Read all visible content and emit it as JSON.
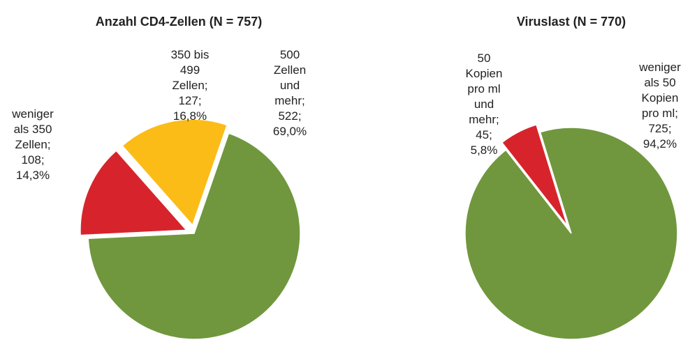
{
  "chart_data": [
    {
      "type": "pie",
      "title": "Anzahl CD4-Zellen (N = 757)",
      "categories": [
        "weniger als 350 Zellen;",
        "350 bis 499 Zellen;",
        "500 Zellen und mehr;"
      ],
      "values": [
        108,
        127,
        522
      ],
      "value_labels": [
        "108;",
        "127;",
        "522;"
      ],
      "percentages": [
        {
          "value": 14.3,
          "label": "14,3%"
        },
        {
          "value": 16.8,
          "label": "16,8%"
        },
        {
          "value": 69.0,
          "label": "69,0%"
        }
      ],
      "colors": [
        "#d7242c",
        "#fbbc18",
        "#70973d"
      ]
    },
    {
      "type": "pie",
      "title": "Viruslast (N = 770)",
      "categories": [
        "50 Kopien pro ml und mehr;",
        "weniger als 50 Kopien pro ml;"
      ],
      "values": [
        45,
        725
      ],
      "value_labels": [
        "45;",
        "725;"
      ],
      "percentages": [
        {
          "value": 5.8,
          "label": "5,8%"
        },
        {
          "value": 94.2,
          "label": "94,2%"
        }
      ],
      "colors": [
        "#d7242c",
        "#70973d"
      ]
    }
  ]
}
